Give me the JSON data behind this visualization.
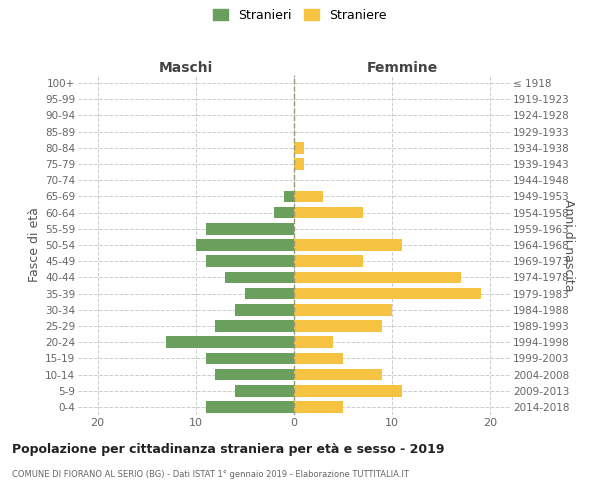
{
  "age_groups": [
    "100+",
    "95-99",
    "90-94",
    "85-89",
    "80-84",
    "75-79",
    "70-74",
    "65-69",
    "60-64",
    "55-59",
    "50-54",
    "45-49",
    "40-44",
    "35-39",
    "30-34",
    "25-29",
    "20-24",
    "15-19",
    "10-14",
    "5-9",
    "0-4"
  ],
  "birth_years": [
    "≤ 1918",
    "1919-1923",
    "1924-1928",
    "1929-1933",
    "1934-1938",
    "1939-1943",
    "1944-1948",
    "1949-1953",
    "1954-1958",
    "1959-1963",
    "1964-1968",
    "1969-1973",
    "1974-1978",
    "1979-1983",
    "1984-1988",
    "1989-1993",
    "1994-1998",
    "1999-2003",
    "2004-2008",
    "2009-2013",
    "2014-2018"
  ],
  "maschi": [
    0,
    0,
    0,
    0,
    0,
    0,
    0,
    1,
    2,
    9,
    10,
    9,
    7,
    5,
    6,
    8,
    13,
    9,
    8,
    6,
    9
  ],
  "femmine": [
    0,
    0,
    0,
    0,
    1,
    1,
    0,
    3,
    7,
    0,
    11,
    7,
    17,
    19,
    10,
    9,
    4,
    5,
    9,
    11,
    5
  ],
  "color_maschi": "#6a9f5e",
  "color_femmine": "#f5c242",
  "title": "Popolazione per cittadinanza straniera per età e sesso - 2019",
  "subtitle": "COMUNE DI FIORANO AL SERIO (BG) - Dati ISTAT 1° gennaio 2019 - Elaborazione TUTTITALIA.IT",
  "label_maschi": "Stranieri",
  "label_femmine": "Straniere",
  "header_left": "Maschi",
  "header_right": "Femmine",
  "ylabel_left": "Fasce di età",
  "ylabel_right": "Anni di nascita",
  "xlim": 22,
  "bg_color": "#ffffff",
  "grid_color": "#cccccc"
}
